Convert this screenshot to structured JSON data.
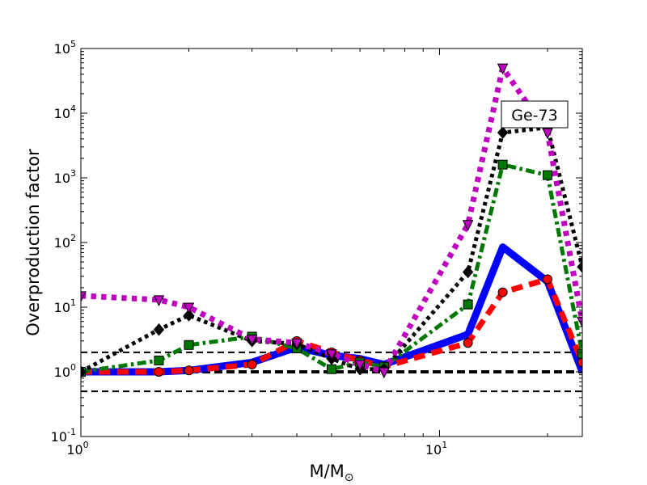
{
  "chart_data": {
    "type": "line",
    "xlabel": "M/M",
    "xlabel_sub": "⊙",
    "ylabel": "Overproduction factor",
    "annotation": "Ge-73",
    "xscale": "log",
    "yscale": "log",
    "xlim": [
      1,
      25
    ],
    "ylim": [
      0.1,
      100000
    ],
    "x_ticks": [
      {
        "value": 1,
        "base": "10",
        "exp": "0"
      },
      {
        "value": 10,
        "base": "10",
        "exp": "1"
      }
    ],
    "y_ticks": [
      {
        "value": 0.1,
        "base": "10",
        "exp": "-1"
      },
      {
        "value": 1,
        "base": "10",
        "exp": "0"
      },
      {
        "value": 10,
        "base": "10",
        "exp": "1"
      },
      {
        "value": 100,
        "base": "10",
        "exp": "2"
      },
      {
        "value": 1000,
        "base": "10",
        "exp": "3"
      },
      {
        "value": 10000,
        "base": "10",
        "exp": "4"
      },
      {
        "value": 100000,
        "base": "10",
        "exp": "5"
      }
    ],
    "reference_lines": [
      {
        "y": 2.0,
        "width": 2,
        "dash": "8,5"
      },
      {
        "y": 1.0,
        "width": 4,
        "dash": "10,5"
      },
      {
        "y": 0.5,
        "width": 2,
        "dash": "8,5"
      }
    ],
    "series": [
      {
        "color": "#0000ff",
        "style": "solid",
        "width": 9,
        "marker": "none",
        "x": [
          1,
          1.65,
          2,
          3,
          4,
          5,
          6,
          7,
          12,
          15,
          20,
          25
        ],
        "y": [
          1.0,
          1.0,
          1.05,
          1.4,
          2.4,
          1.8,
          1.6,
          1.3,
          3.8,
          85,
          25,
          1.0
        ]
      },
      {
        "color": "#ff0000",
        "style": "dashed",
        "width": 7,
        "marker": "circle",
        "x": [
          1,
          1.65,
          2,
          3,
          4,
          5,
          6,
          7,
          12,
          15,
          20,
          25
        ],
        "y": [
          1.0,
          1.0,
          1.05,
          1.3,
          3.0,
          2.0,
          1.5,
          1.2,
          2.8,
          17,
          27,
          1.4
        ]
      },
      {
        "color": "#007700",
        "style": "dashdot",
        "width": 5,
        "marker": "square",
        "x": [
          1,
          1.65,
          2,
          3,
          4,
          5,
          6,
          7,
          12,
          15,
          20,
          25
        ],
        "y": [
          1.0,
          1.5,
          2.6,
          3.5,
          2.3,
          1.1,
          1.4,
          1.2,
          11,
          1600,
          1100,
          1.9
        ]
      },
      {
        "color": "#000000",
        "style": "dotted",
        "width": 5,
        "marker": "diamond",
        "x": [
          1,
          1.65,
          2,
          3,
          4,
          5,
          6,
          7,
          12,
          15,
          20,
          25
        ],
        "y": [
          1.0,
          4.5,
          7.5,
          3.0,
          2.7,
          1.6,
          1.1,
          1.1,
          35,
          5000,
          6000,
          42
        ]
      },
      {
        "color": "#c000c0",
        "style": "dotted",
        "width": 7,
        "marker": "triangle-down",
        "x": [
          1,
          1.65,
          2,
          3,
          4,
          5,
          6,
          7,
          12,
          15,
          20,
          25
        ],
        "y": [
          15,
          13,
          10,
          3.2,
          2.8,
          1.9,
          1.3,
          1.0,
          190,
          50000,
          5000,
          6
        ]
      }
    ]
  }
}
